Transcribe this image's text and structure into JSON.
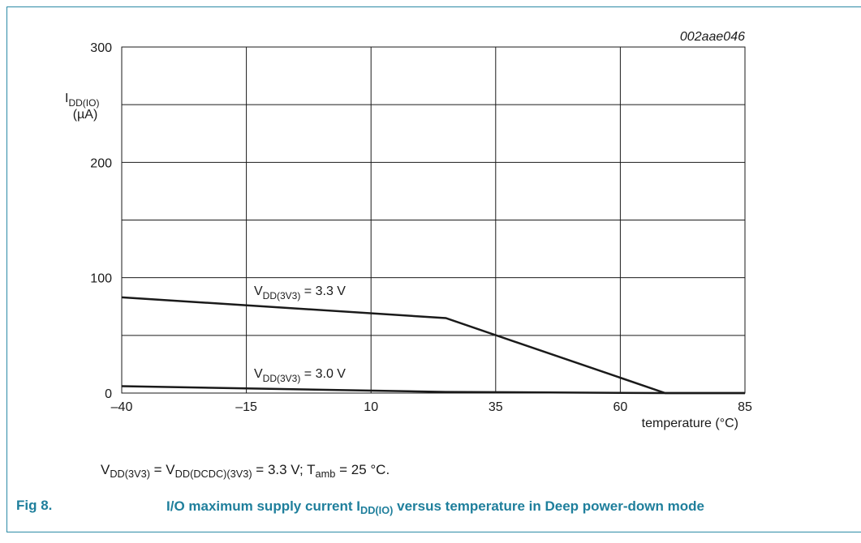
{
  "chart_data": {
    "type": "line",
    "figure_id": "002aae046",
    "y_label_parts": [
      "I",
      "DD(IO)"
    ],
    "y_unit": "(µA)",
    "x_label": "temperature (°C)",
    "xlim": [
      -40,
      85
    ],
    "ylim": [
      0,
      300
    ],
    "xticks": [
      {
        "value": -40,
        "label": "–40"
      },
      {
        "value": -15,
        "label": "–15"
      },
      10,
      35,
      60,
      85
    ],
    "yticks": [
      0,
      100,
      200,
      300
    ],
    "minor_yticks": [
      50,
      150,
      250
    ],
    "grid": true,
    "series": [
      {
        "name_parts": [
          "V",
          "DD(3V3)",
          " = 3.3 V"
        ],
        "color": "#1a1a1a",
        "x": [
          -40,
          25,
          69,
          85
        ],
        "values": [
          83,
          65,
          0,
          0
        ]
      },
      {
        "name_parts": [
          "V",
          "DD(3V3)",
          " = 3.0 V"
        ],
        "color": "#1a1a1a",
        "x": [
          -40,
          25,
          69,
          85
        ],
        "values": [
          6,
          1,
          0,
          0
        ]
      }
    ],
    "note_parts": [
      "V",
      "DD(3V3)",
      " = V",
      "DD(DCDC)(3V3)",
      " = 3.3 V; T",
      "amb",
      " = 25 °C."
    ],
    "figure_number": "Fig 8.",
    "caption_parts": [
      "I/O maximum supply current I",
      "DD(IO)",
      " versus temperature in Deep power-down mode"
    ]
  }
}
